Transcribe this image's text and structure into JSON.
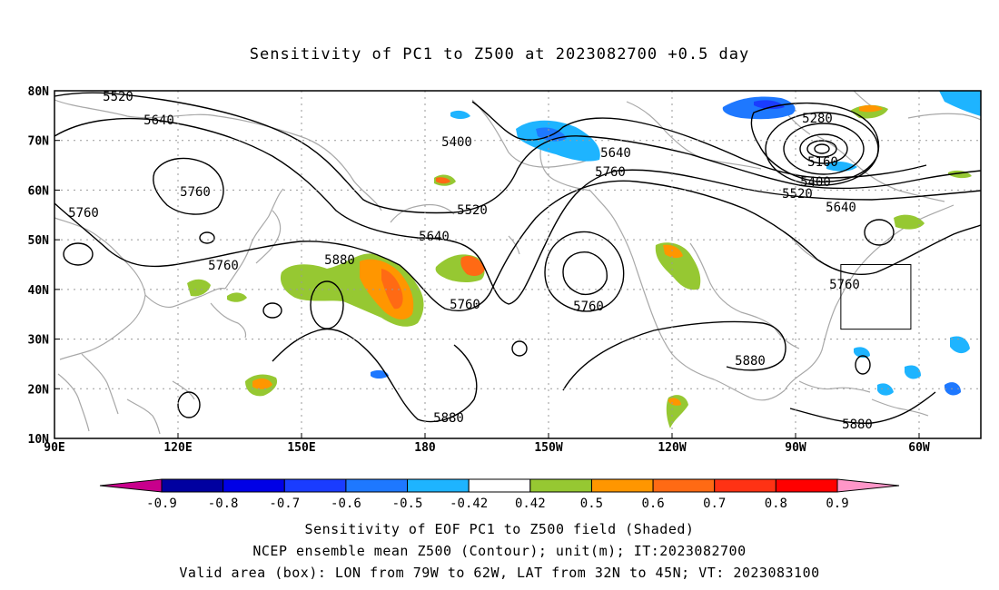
{
  "title": "Sensitivity of PC1 to Z500 at 2023082700 +0.5 day",
  "lat_ticks": [
    "80N",
    "70N",
    "60N",
    "50N",
    "40N",
    "30N",
    "20N",
    "10N"
  ],
  "lon_ticks": [
    "90E",
    "120E",
    "150E",
    "180",
    "150W",
    "120W",
    "90W",
    "60W"
  ],
  "contour_labels": [
    {
      "text": "5520"
    },
    {
      "text": "5640"
    },
    {
      "text": "5760"
    },
    {
      "text": "5760"
    },
    {
      "text": "5760"
    },
    {
      "text": "5880"
    },
    {
      "text": "5400"
    },
    {
      "text": "5520"
    },
    {
      "text": "5640"
    },
    {
      "text": "5640"
    },
    {
      "text": "5760"
    },
    {
      "text": "5760"
    },
    {
      "text": "5760"
    },
    {
      "text": "5280"
    },
    {
      "text": "5160"
    },
    {
      "text": "5400"
    },
    {
      "text": "5520"
    },
    {
      "text": "5640"
    },
    {
      "text": "5760"
    },
    {
      "text": "5880"
    },
    {
      "text": "5880"
    },
    {
      "text": "5880"
    }
  ],
  "colorbar": {
    "labels": [
      "-0.9",
      "-0.8",
      "-0.7",
      "-0.6",
      "-0.5",
      "-0.42",
      "0.42",
      "0.5",
      "0.6",
      "0.7",
      "0.8",
      "0.9"
    ],
    "colors": {
      "low_end": "#c8008c",
      "bins": [
        "#0000a0",
        "#0000e6",
        "#1a3cff",
        "#1e78ff",
        "#1eb4ff",
        "#ffffff",
        "#96c832",
        "#ff9600",
        "#ff6a14",
        "#ff3214",
        "#ff0000"
      ],
      "high_end": "#ff96c8"
    }
  },
  "captions": [
    "Sensitivity of EOF PC1 to Z500 field (Shaded)",
    "NCEP ensemble mean Z500 (Contour); unit(m); IT:2023082700",
    "Valid area (box): LON from 79W to 62W, LAT from 32N to 45N; VT: 2023083100"
  ],
  "valid_box": {
    "lon_min": -79,
    "lon_max": -62,
    "lat_min": 32,
    "lat_max": 45
  }
}
